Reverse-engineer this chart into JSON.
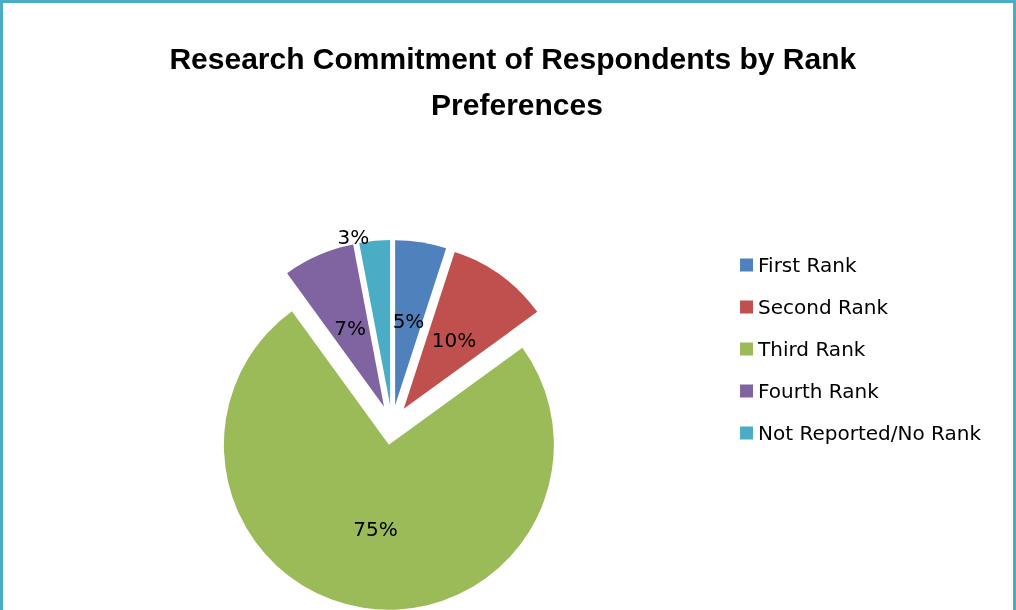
{
  "chart_data": {
    "type": "pie",
    "title": "Research Commitment of Respondents by Rank Preferences",
    "categories": [
      "First Rank",
      "Second Rank",
      "Third Rank",
      "Fourth Rank",
      "Not Reported/No Rank"
    ],
    "values": [
      5,
      10,
      75,
      7,
      3
    ],
    "colors": [
      "#4f81bd",
      "#c0504d",
      "#9bbb59",
      "#8064a2",
      "#4bacc6"
    ],
    "value_labels": [
      "5%",
      "10%",
      "75%",
      "7%",
      "3%"
    ],
    "legend": "right"
  }
}
